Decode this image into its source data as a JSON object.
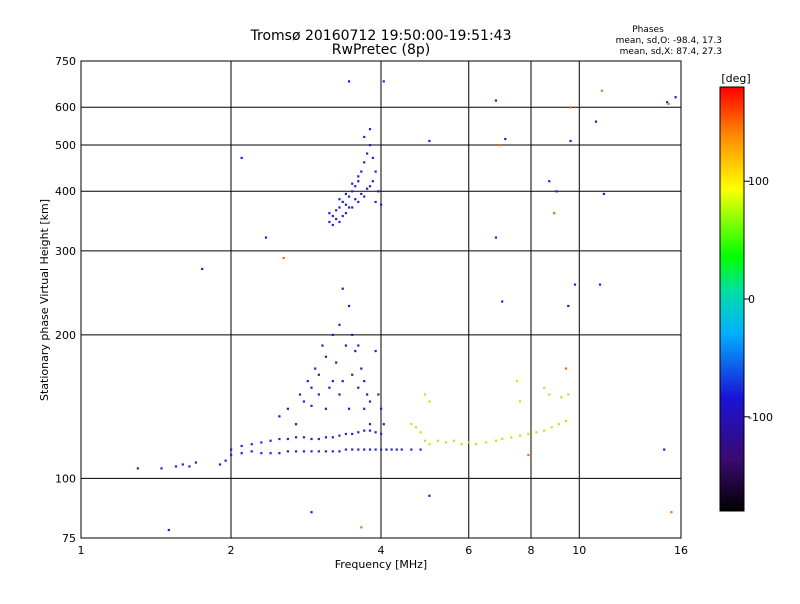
{
  "chart_data": {
    "type": "scatter",
    "title": "Tromsø 20160712 19:50:00-19:51:43",
    "subtitle": "RwPretec (8p)",
    "xlabel": "Frequency [MHz]",
    "ylabel": "Stationary phase Virtual Height [km]",
    "x_scale": "log",
    "y_scale": "log",
    "xlim": [
      1,
      16
    ],
    "ylim": [
      75,
      750
    ],
    "x_ticks": [
      1,
      2,
      4,
      6,
      8,
      10,
      16
    ],
    "x_tick_labels": [
      "1",
      "2",
      "4",
      "6",
      "8",
      "10",
      "16"
    ],
    "y_ticks": [
      75,
      100,
      200,
      300,
      400,
      500,
      600,
      750
    ],
    "y_tick_labels": [
      "75",
      "100",
      "200",
      "300",
      "400",
      "500",
      "600",
      "750"
    ],
    "grid": true,
    "legend": {
      "position": "top-right",
      "heading": "Phases",
      "lines": [
        "mean, sd,O: -98.4, 17.3",
        "mean, sd,X:  87.4, 27.3"
      ]
    },
    "colorbar": {
      "label": "[deg]",
      "range": [
        -180,
        180
      ],
      "ticks": [
        100,
        0,
        -100
      ],
      "tick_labels": [
        "100",
        "0",
        "-100"
      ]
    },
    "point_groups": [
      {
        "name": "main-trace-lower",
        "color": "#2222dd",
        "points": [
          [
            1.3,
            105
          ],
          [
            1.45,
            105
          ],
          [
            1.55,
            106
          ],
          [
            1.6,
            107
          ],
          [
            1.65,
            106
          ],
          [
            1.7,
            108
          ],
          [
            1.9,
            107
          ],
          [
            1.95,
            109
          ],
          [
            2.0,
            112
          ],
          [
            2.1,
            113
          ],
          [
            2.2,
            114
          ],
          [
            2.3,
            113
          ],
          [
            2.4,
            113
          ],
          [
            2.5,
            113
          ],
          [
            2.6,
            114
          ],
          [
            2.7,
            114
          ],
          [
            2.8,
            114
          ],
          [
            2.9,
            114
          ],
          [
            3.0,
            114
          ],
          [
            3.1,
            114
          ],
          [
            3.2,
            114
          ],
          [
            3.3,
            114
          ],
          [
            3.4,
            115
          ],
          [
            3.5,
            115
          ],
          [
            3.6,
            115
          ],
          [
            3.7,
            115
          ],
          [
            3.8,
            115
          ],
          [
            3.9,
            115
          ],
          [
            4.0,
            115
          ],
          [
            4.1,
            115
          ],
          [
            4.2,
            115
          ],
          [
            4.3,
            115
          ],
          [
            4.4,
            115
          ],
          [
            4.6,
            115
          ],
          [
            4.8,
            115
          ]
        ]
      },
      {
        "name": "main-trace-upper",
        "color": "#2a1fcc",
        "points": [
          [
            2.0,
            115
          ],
          [
            2.1,
            117
          ],
          [
            2.2,
            118
          ],
          [
            2.3,
            119
          ],
          [
            2.4,
            120
          ],
          [
            2.5,
            121
          ],
          [
            2.6,
            121
          ],
          [
            2.7,
            122
          ],
          [
            2.8,
            122
          ],
          [
            2.9,
            121
          ],
          [
            3.0,
            121
          ],
          [
            3.1,
            122
          ],
          [
            3.2,
            122
          ],
          [
            3.3,
            123
          ],
          [
            3.4,
            124
          ],
          [
            3.5,
            124
          ],
          [
            3.6,
            125
          ],
          [
            3.7,
            126
          ],
          [
            3.8,
            126
          ],
          [
            3.9,
            125
          ],
          [
            4.0,
            124
          ]
        ]
      },
      {
        "name": "spread-f-columns",
        "color": "#3b12c0",
        "points": [
          [
            2.5,
            135
          ],
          [
            2.6,
            140
          ],
          [
            2.7,
            130
          ],
          [
            2.75,
            150
          ],
          [
            2.8,
            145
          ],
          [
            2.85,
            160
          ],
          [
            2.9,
            142
          ],
          [
            2.95,
            170
          ],
          [
            3.0,
            150
          ],
          [
            3.05,
            190
          ],
          [
            3.1,
            180
          ],
          [
            3.15,
            155
          ],
          [
            3.2,
            200
          ],
          [
            3.25,
            175
          ],
          [
            3.3,
            210
          ],
          [
            3.35,
            250
          ],
          [
            3.4,
            190
          ],
          [
            3.45,
            230
          ],
          [
            3.5,
            200
          ],
          [
            3.55,
            185
          ],
          [
            3.6,
            190
          ],
          [
            3.65,
            170
          ],
          [
            3.7,
            160
          ],
          [
            3.75,
            150
          ],
          [
            3.8,
            145
          ],
          [
            3.9,
            185
          ],
          [
            3.95,
            150
          ],
          [
            4.0,
            140
          ],
          [
            4.05,
            130
          ],
          [
            3.35,
            160
          ],
          [
            3.45,
            140
          ],
          [
            3.5,
            165
          ],
          [
            3.3,
            150
          ],
          [
            3.2,
            160
          ],
          [
            3.1,
            140
          ],
          [
            3.0,
            165
          ],
          [
            2.9,
            155
          ],
          [
            3.6,
            155
          ],
          [
            3.7,
            140
          ],
          [
            3.8,
            130
          ]
        ]
      },
      {
        "name": "f2-cluster",
        "color": "#2020cc",
        "points": [
          [
            3.15,
            360
          ],
          [
            3.2,
            355
          ],
          [
            3.25,
            365
          ],
          [
            3.3,
            370
          ],
          [
            3.35,
            380
          ],
          [
            3.4,
            375
          ],
          [
            3.45,
            390
          ],
          [
            3.5,
            400
          ],
          [
            3.55,
            410
          ],
          [
            3.6,
            420
          ],
          [
            3.65,
            440
          ],
          [
            3.7,
            460
          ],
          [
            3.75,
            480
          ],
          [
            3.8,
            500
          ],
          [
            3.85,
            470
          ],
          [
            3.9,
            440
          ],
          [
            3.95,
            400
          ],
          [
            3.35,
            355
          ],
          [
            3.45,
            370
          ],
          [
            3.55,
            385
          ],
          [
            3.65,
            395
          ],
          [
            3.75,
            405
          ],
          [
            3.85,
            420
          ],
          [
            3.7,
            520
          ],
          [
            3.8,
            540
          ],
          [
            3.6,
            430
          ],
          [
            3.5,
            415
          ],
          [
            3.4,
            395
          ],
          [
            3.3,
            385
          ],
          [
            3.25,
            350
          ],
          [
            3.15,
            345
          ],
          [
            3.2,
            340
          ],
          [
            3.3,
            345
          ],
          [
            3.4,
            360
          ],
          [
            3.5,
            370
          ],
          [
            3.6,
            380
          ],
          [
            3.7,
            390
          ],
          [
            3.8,
            410
          ],
          [
            3.9,
            380
          ],
          [
            4.0,
            375
          ]
        ]
      },
      {
        "name": "mixed-phase-trace",
        "color": "#c8e020",
        "points": [
          [
            4.6,
            130
          ],
          [
            4.7,
            128
          ],
          [
            4.8,
            125
          ],
          [
            4.9,
            120
          ],
          [
            5.0,
            118
          ],
          [
            5.2,
            120
          ],
          [
            5.4,
            119
          ],
          [
            5.6,
            120
          ],
          [
            5.8,
            118
          ],
          [
            6.0,
            119
          ],
          [
            6.2,
            118
          ],
          [
            6.5,
            119
          ],
          [
            6.8,
            120
          ],
          [
            7.0,
            121
          ],
          [
            7.3,
            122
          ],
          [
            7.6,
            123
          ],
          [
            7.9,
            124
          ],
          [
            8.2,
            125
          ],
          [
            8.5,
            126
          ],
          [
            8.8,
            128
          ],
          [
            9.1,
            130
          ],
          [
            9.4,
            132
          ],
          [
            4.9,
            150
          ],
          [
            5.0,
            145
          ],
          [
            7.5,
            160
          ],
          [
            7.6,
            145
          ],
          [
            8.5,
            155
          ],
          [
            8.7,
            150
          ],
          [
            9.2,
            148
          ],
          [
            9.5,
            150
          ]
        ]
      },
      {
        "name": "scattered-points",
        "color": "#1e1ed8",
        "points": [
          [
            1.5,
            78
          ],
          [
            2.9,
            85
          ],
          [
            5.0,
            92
          ],
          [
            1.75,
            275
          ],
          [
            2.35,
            320
          ],
          [
            2.1,
            470
          ],
          [
            3.45,
            680
          ],
          [
            4.05,
            680
          ],
          [
            5.0,
            510
          ],
          [
            6.8,
            620
          ],
          [
            7.1,
            515
          ],
          [
            6.8,
            320
          ],
          [
            7.0,
            235
          ],
          [
            9.0,
            400
          ],
          [
            9.6,
            510
          ],
          [
            10.8,
            560
          ],
          [
            11.0,
            255
          ],
          [
            11.2,
            395
          ],
          [
            9.8,
            255
          ],
          [
            15.0,
            615
          ],
          [
            15.6,
            630
          ],
          [
            8.7,
            420
          ],
          [
            9.5,
            230
          ],
          [
            14.8,
            115
          ]
        ]
      },
      {
        "name": "orange-red-points",
        "color": "#ff6a00",
        "points": [
          [
            2.55,
            290
          ],
          [
            3.65,
            79
          ],
          [
            7.9,
            112
          ],
          [
            8.9,
            360
          ],
          [
            9.6,
            600
          ],
          [
            11.1,
            650
          ],
          [
            15.1,
            610
          ],
          [
            15.3,
            85
          ],
          [
            9.4,
            170
          ],
          [
            6.9,
            500
          ]
        ]
      }
    ]
  }
}
